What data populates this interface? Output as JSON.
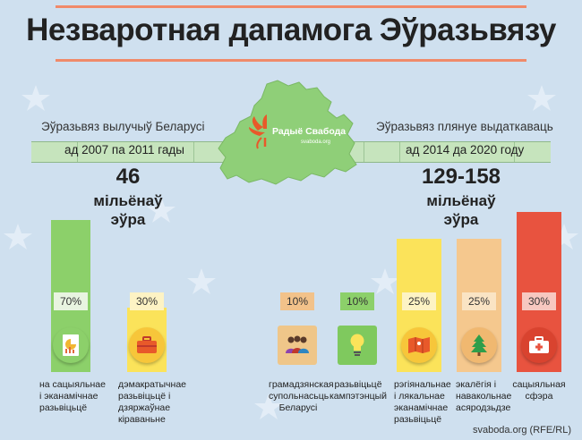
{
  "title": "Незваротная дапамога Эўразьвязу",
  "logo": {
    "name": "Радыё Свабода",
    "site": "svaboda.org"
  },
  "left": {
    "heading": "Эўразьвяз вылучыў Беларусі",
    "period": "ад 2007 па 2011 гады",
    "amount": "46",
    "unit_line1": "мільёнаў",
    "unit_line2": "эўра"
  },
  "right": {
    "heading": "Эўразьвяз плянуе выдаткаваць",
    "period": "ад 2014 да 2020 году",
    "amount": "129-158",
    "unit_line1": "мільёнаў",
    "unit_line2": "эўра"
  },
  "left_items": [
    {
      "percent": "70%",
      "share": 70,
      "color": "#8cd06a",
      "icon": "chart-document-icon",
      "caption": [
        "на сацыяльнае",
        "і эканамічнае",
        "разьвіцьцё"
      ]
    },
    {
      "percent": "30%",
      "share": 30,
      "color": "#fbe35a",
      "icon": "briefcase-icon",
      "caption": [
        "дэмакратычнае",
        "разьвіцьцё і",
        "дзяржаўнае",
        "кіраваньне"
      ]
    }
  ],
  "right_items": [
    {
      "percent": "10%",
      "share": 10,
      "color": "#f2c28a",
      "icon": "people-group-icon",
      "caption": [
        "грамадзянская",
        "супольнасьць",
        "Беларусі"
      ]
    },
    {
      "percent": "10%",
      "share": 10,
      "color": "#8cd06a",
      "icon": "lightbulb-icon",
      "caption": [
        "разьвіцьцё",
        "кампэтэнцый"
      ]
    },
    {
      "percent": "25%",
      "share": 25,
      "color": "#fbe35a",
      "icon": "map-icon",
      "caption": [
        "рэгіянальнае",
        "і лякальнае",
        "эканамічнае",
        "разьвіцьцё"
      ]
    },
    {
      "percent": "25%",
      "share": 25,
      "color": "#f5c88e",
      "icon": "tree-icon",
      "caption": [
        "экалёгія і",
        "навакольнае",
        "асяродзьдзе"
      ]
    },
    {
      "percent": "30%",
      "share": 30,
      "color": "#e8533f",
      "icon": "first-aid-kit-icon",
      "caption": [
        "сацыяльная",
        "сфэра"
      ]
    }
  ],
  "footer": "svaboda.org (RFE/RL)"
}
